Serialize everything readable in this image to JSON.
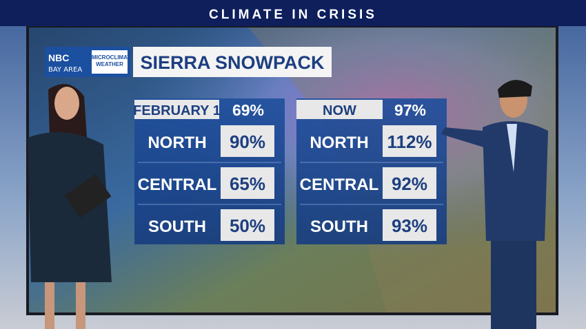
{
  "banner": "CLIMATE IN CRISIS",
  "logo": {
    "brand": "NBC",
    "region": "BAY AREA",
    "product": "MICROCLIMATE WEATHER"
  },
  "title": "SIERRA SNOWPACK",
  "panels": [
    {
      "label": "FEBRUARY 1",
      "total": "69%",
      "rows": [
        [
          "NORTH",
          "90%"
        ],
        [
          "CENTRAL",
          "65%"
        ],
        [
          "SOUTH",
          "50%"
        ]
      ]
    },
    {
      "label": "NOW",
      "total": "97%",
      "rows": [
        [
          "NORTH",
          "112%"
        ],
        [
          "CENTRAL",
          "92%"
        ],
        [
          "SOUTH",
          "93%"
        ]
      ]
    }
  ]
}
